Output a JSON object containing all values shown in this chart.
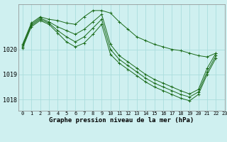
{
  "background_color": "#cff0f0",
  "grid_color": "#aadddd",
  "line_color": "#1a6b1a",
  "xlabel": "Graphe pression niveau de la mer (hPa)",
  "xlim": [
    -0.5,
    23
  ],
  "ylim": [
    1017.55,
    1021.8
  ],
  "yticks": [
    1018,
    1019,
    1020
  ],
  "xticks": [
    0,
    1,
    2,
    3,
    4,
    5,
    6,
    7,
    8,
    9,
    10,
    11,
    12,
    13,
    14,
    15,
    16,
    17,
    18,
    19,
    20,
    21,
    22,
    23
  ],
  "series": [
    {
      "x": [
        0,
        1,
        2,
        3,
        4,
        5,
        6,
        7,
        8,
        9,
        10,
        11,
        12,
        13,
        14,
        15,
        16,
        17,
        18,
        19,
        20,
        21,
        22
      ],
      "y": [
        1020.2,
        1021.05,
        1021.3,
        1021.2,
        1021.15,
        1021.05,
        1021.0,
        1021.3,
        1021.55,
        1021.55,
        1021.45,
        1021.1,
        1020.8,
        1020.5,
        1020.35,
        1020.2,
        1020.1,
        1020.0,
        1019.95,
        1019.85,
        1019.75,
        1019.7,
        1019.85
      ]
    },
    {
      "x": [
        0,
        1,
        2,
        3,
        4,
        5,
        6,
        7,
        8,
        9,
        10,
        11,
        12,
        13,
        14,
        15,
        16,
        17,
        18,
        19,
        20,
        21,
        22
      ],
      "y": [
        1020.15,
        1021.0,
        1021.25,
        1021.1,
        1020.9,
        1020.75,
        1020.6,
        1020.8,
        1021.1,
        1021.4,
        1020.2,
        1019.75,
        1019.5,
        1019.25,
        1019.0,
        1018.8,
        1018.65,
        1018.5,
        1018.35,
        1018.22,
        1018.4,
        1019.25,
        1019.85
      ]
    },
    {
      "x": [
        0,
        1,
        2,
        3,
        4,
        5,
        6,
        7,
        8,
        9,
        10,
        11,
        12,
        13,
        14,
        15,
        16,
        17,
        18,
        19,
        20,
        21,
        22
      ],
      "y": [
        1020.1,
        1020.95,
        1021.2,
        1021.05,
        1020.75,
        1020.5,
        1020.3,
        1020.5,
        1020.85,
        1021.2,
        1020.0,
        1019.6,
        1019.35,
        1019.1,
        1018.85,
        1018.65,
        1018.5,
        1018.35,
        1018.2,
        1018.1,
        1018.3,
        1019.1,
        1019.75
      ]
    },
    {
      "x": [
        0,
        1,
        2,
        3,
        4,
        5,
        6,
        7,
        8,
        9,
        10,
        11,
        12,
        13,
        14,
        15,
        16,
        17,
        18,
        19,
        20,
        21,
        22
      ],
      "y": [
        1020.05,
        1020.9,
        1021.15,
        1021.0,
        1020.65,
        1020.3,
        1020.1,
        1020.25,
        1020.6,
        1021.0,
        1019.8,
        1019.45,
        1019.2,
        1018.95,
        1018.7,
        1018.5,
        1018.35,
        1018.2,
        1018.05,
        1017.95,
        1018.2,
        1019.0,
        1019.65
      ]
    }
  ]
}
